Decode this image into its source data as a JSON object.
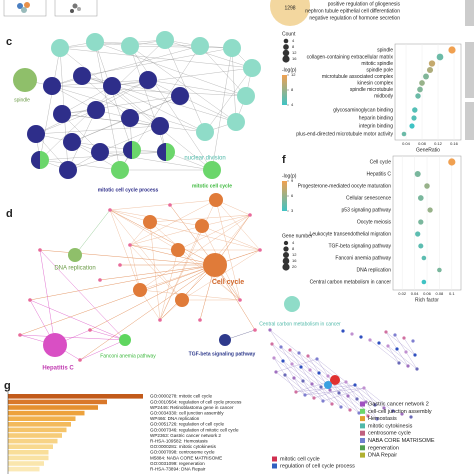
{
  "panel_labels": {
    "c": "c",
    "d": "d",
    "f": "f",
    "g": "g"
  },
  "top": {
    "venn_count": "1298",
    "terms": [
      "positive regulation of gliogenesis",
      "nephron tubule epithelial cell differentiation",
      "negative regulation of hormone secretion"
    ]
  },
  "panel_c": {
    "labels": {
      "spindle": "spindle",
      "nuclear_division": "nuclear division",
      "mitotic_process": "mitotic cell cycle process",
      "mitotic_cycle": "mitotic cell cycle"
    }
  },
  "panel_e": {
    "terms": [
      "spindle",
      "collagen-containing extracellular matrix",
      "mitotic spindle",
      "spindle pole",
      "microtubule associated complex",
      "kinesin complex",
      "spindle microtubule",
      "midbody",
      "glycosaminoglycan binding",
      "heparin binding",
      "integrin binding",
      "plus-end-directed microtubule motor activity"
    ],
    "gene_ratio": [
      0.155,
      0.125,
      0.105,
      0.1,
      0.09,
      0.08,
      0.075,
      0.07,
      0.062,
      0.06,
      0.055,
      0.035
    ],
    "count": [
      16,
      13,
      11,
      10,
      9,
      8,
      8,
      7,
      7,
      6,
      6,
      4
    ],
    "neglogp": [
      12,
      6,
      10,
      9,
      7,
      8,
      7,
      6,
      5,
      5,
      4,
      6
    ],
    "xlabel": "GeneRatio",
    "xlim": [
      0.02,
      0.17
    ],
    "xticks": [
      0.04,
      0.08,
      0.12,
      0.16
    ],
    "size_title": "Count",
    "size_ticks": [
      4,
      8,
      12,
      16
    ],
    "color_title": "-log(p)",
    "color_ticks": [
      4,
      8,
      12
    ]
  },
  "panel_f": {
    "terms": [
      "Cell cycle",
      "Hepatitis C",
      "Progesterone-mediated oocyte maturation",
      "Cellular senescence",
      "p53 signaling pathway",
      "Oocyte meiosis",
      "Leukocyte transendothelial migration",
      "TGF-beta signaling pathway",
      "Fanconi anemia pathway",
      "DNA replication",
      "Central carbon metabolism in cancer"
    ],
    "rich_factor": [
      0.1,
      0.045,
      0.06,
      0.05,
      0.065,
      0.05,
      0.045,
      0.05,
      0.055,
      0.08,
      0.055
    ],
    "gene_number": [
      20,
      12,
      9,
      10,
      8,
      8,
      8,
      7,
      5,
      5,
      5
    ],
    "neglogp": [
      9,
      5,
      6,
      5,
      6,
      5,
      4,
      4,
      4,
      5,
      3
    ],
    "xlabel": "Rich factor",
    "xlim": [
      0.01,
      0.11
    ],
    "xticks": [
      0.02,
      0.04,
      0.06,
      0.08,
      0.1
    ],
    "size_title": "Gene number",
    "size_ticks": [
      4,
      8,
      12,
      16,
      20
    ],
    "color_title": "-log(p)",
    "color_ticks": [
      3,
      6,
      9
    ]
  },
  "panel_d": {
    "labels": {
      "dna": "DNA replication",
      "cell_cycle": "Cell cycle",
      "hepatitis": "Hepatitis C",
      "fanconi": "Fanconi anemia pathway",
      "tgf": "TGF-beta signaling pathway",
      "carbon": "Central carbon metabolism in cancer"
    }
  },
  "panel_g": {
    "terms": [
      "GO:0000278: mitotic cell cycle",
      "GO:0010564: regulation of cell cycle process",
      "WP2446: Retinoblastoma gene in cancer",
      "GO:0034330: cell junction assembly",
      "WP466: DNA replication",
      "GO:0051726: regulation of cell cycle",
      "GO:0007346: regulation of mitotic cell cycle",
      "WP2363: Gastric cancer network 2",
      "R-HSA-109582: Hemostasis",
      "GO:0000281: mitotic cytokinesis",
      "GO:0007098: centrosome cycle",
      "M5884: NABA CORE MATRISOME",
      "GO:0031099: regeneration",
      "R-HSA-73894: DNA Repair"
    ],
    "values": [
      30,
      22,
      20,
      17,
      15,
      14,
      13,
      12,
      11,
      10,
      9,
      9,
      8,
      7
    ],
    "legend": [
      "mitotic cell cycle",
      "regulation of cell cycle process",
      "Gastric cancer network 2",
      "cell-cell junction assembly",
      "Hemostasis",
      "mitotic cytokinesis",
      "centrosome cycle",
      "NABA CORE MATRISOME",
      "regeneration",
      "DNA Repair"
    ]
  }
}
